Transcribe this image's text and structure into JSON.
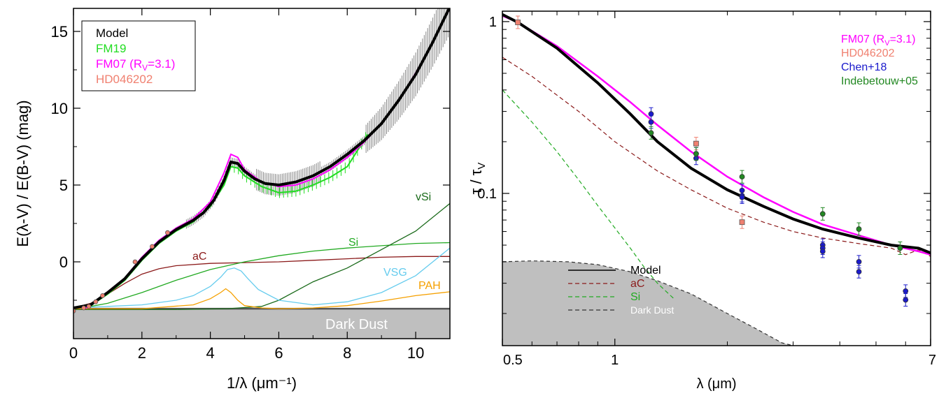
{
  "colors": {
    "model": "#000000",
    "fm19": "#22dd22",
    "fm07": "#ff00ff",
    "hd": "#f08070",
    "chen": "#1a1acc",
    "indebetouw": "#228822",
    "aC": "#8b1a1a",
    "Si": "#22aa22",
    "vSi": "#1a6a1a",
    "VSG": "#66ccee",
    "PAH": "#f5a000",
    "dark_dust": "#bfbfbf"
  },
  "chart_data": [
    {
      "type": "line",
      "xlabel": "1/λ (μm⁻¹)",
      "ylabel": "E(λ-V) / E(B-V) (mag)",
      "xlim": [
        0,
        11
      ],
      "ylim": [
        -5,
        16.5
      ],
      "xticks": [
        0,
        2,
        4,
        6,
        8,
        10
      ],
      "yticks": [
        0,
        5,
        10,
        15
      ],
      "legend": {
        "position": "top-left",
        "entries": [
          "Model",
          "FM19",
          "FM07 (R_V=3.1)",
          "HD046202"
        ]
      },
      "series": [
        {
          "name": "Model",
          "key": "model",
          "x": [
            0.0,
            0.5,
            1.0,
            1.5,
            2.0,
            2.5,
            3.0,
            3.5,
            3.8,
            4.1,
            4.4,
            4.6,
            4.8,
            5.0,
            5.3,
            5.6,
            6.0,
            6.5,
            7.0,
            7.5,
            8.0,
            8.5,
            9.0,
            9.5,
            10.0,
            10.5,
            11.0
          ],
          "y": [
            -3.0,
            -2.8,
            -2.0,
            -1.1,
            0.2,
            1.3,
            2.1,
            2.7,
            3.2,
            4.0,
            5.3,
            6.5,
            6.4,
            5.9,
            5.4,
            5.1,
            5.0,
            5.2,
            5.6,
            6.2,
            7.0,
            7.9,
            9.0,
            10.5,
            12.2,
            14.3,
            16.6
          ]
        },
        {
          "name": "FM19",
          "key": "fm19",
          "x": [
            0.0,
            0.5,
            1.0,
            1.5,
            2.0,
            2.5,
            3.0,
            3.5,
            4.0,
            4.4,
            4.6,
            4.8,
            5.0,
            5.5,
            6.0,
            6.5,
            7.0,
            7.5,
            8.0,
            8.6
          ],
          "y": [
            -3.0,
            -2.85,
            -2.1,
            -1.2,
            0.1,
            1.2,
            2.0,
            2.6,
            3.6,
            5.0,
            6.2,
            6.1,
            5.6,
            4.9,
            4.5,
            4.6,
            5.0,
            5.5,
            6.2,
            8.3
          ]
        },
        {
          "name": "FM07 (R_V=3.1)",
          "key": "fm07",
          "x": [
            0.3,
            0.5,
            1.0,
            1.5,
            2.0,
            2.5,
            3.0,
            3.5,
            4.0,
            4.4,
            4.6,
            4.8,
            5.0,
            5.5,
            6.0,
            6.5,
            7.0,
            7.5,
            8.0,
            8.5,
            9.0,
            9.5,
            10.0,
            10.5,
            11.0
          ],
          "y": [
            -3.1,
            -2.8,
            -1.95,
            -1.05,
            0.3,
            1.4,
            2.2,
            2.8,
            3.9,
            5.8,
            7.0,
            6.8,
            6.0,
            5.2,
            4.9,
            5.0,
            5.4,
            6.0,
            6.8,
            7.8,
            9.0,
            10.5,
            12.3,
            14.3,
            16.5
          ]
        }
      ],
      "data_points": {
        "name": "HD046202",
        "x": [
          0.0,
          0.3,
          0.45,
          0.65,
          0.85,
          1.8,
          2.3,
          2.75
        ],
        "y": [
          -3.2,
          -3.0,
          -2.9,
          -2.6,
          -2.2,
          0.0,
          1.0,
          1.9
        ]
      },
      "components": [
        {
          "name": "aC",
          "key": "aC",
          "x": [
            0,
            0.5,
            1.0,
            1.5,
            2.0,
            2.5,
            3.0,
            4.0,
            5.0,
            6.0,
            7.0,
            8.0,
            9.0,
            10.0,
            11.0
          ],
          "y": [
            -3.0,
            -2.7,
            -2.1,
            -1.4,
            -0.8,
            -0.45,
            -0.25,
            -0.1,
            -0.05,
            0.0,
            0.1,
            0.2,
            0.3,
            0.35,
            0.35
          ]
        },
        {
          "name": "Si",
          "key": "Si",
          "x": [
            0,
            0.5,
            1.0,
            2.0,
            3.0,
            4.0,
            5.0,
            6.0,
            7.0,
            8.0,
            9.0,
            10.0,
            11.0
          ],
          "y": [
            -3.0,
            -2.9,
            -2.7,
            -2.0,
            -1.2,
            -0.5,
            0.0,
            0.4,
            0.7,
            0.9,
            1.05,
            1.2,
            1.25
          ]
        },
        {
          "name": "vSi",
          "key": "vSi",
          "x": [
            0,
            3.0,
            4.5,
            5.5,
            6.0,
            6.5,
            7.0,
            8.0,
            9.0,
            10.0,
            11.0
          ],
          "y": [
            -3.1,
            -3.1,
            -3.05,
            -2.9,
            -2.5,
            -1.9,
            -1.3,
            -0.4,
            0.8,
            2.0,
            3.8
          ]
        },
        {
          "name": "VSG",
          "key": "VSG",
          "x": [
            0,
            1.0,
            2.0,
            3.0,
            3.5,
            4.0,
            4.3,
            4.5,
            4.7,
            4.9,
            5.1,
            5.4,
            6.0,
            7.0,
            8.0,
            9.0,
            10.0,
            11.0
          ],
          "y": [
            -3.0,
            -2.9,
            -2.8,
            -2.5,
            -2.2,
            -1.6,
            -1.0,
            -0.5,
            -0.4,
            -0.6,
            -1.1,
            -1.8,
            -2.5,
            -2.8,
            -2.6,
            -2.0,
            -0.9,
            0.9
          ]
        },
        {
          "name": "PAH",
          "key": "PAH",
          "x": [
            0,
            2.0,
            3.5,
            4.0,
            4.3,
            4.45,
            4.6,
            4.8,
            5.0,
            5.5,
            6.0,
            7.0,
            8.0,
            9.0,
            10.0,
            11.0
          ],
          "y": [
            -3.05,
            -3.05,
            -2.8,
            -2.4,
            -2.0,
            -1.75,
            -2.0,
            -2.5,
            -2.85,
            -3.0,
            -3.05,
            -3.0,
            -2.85,
            -2.55,
            -2.2,
            -1.95
          ]
        }
      ],
      "dark_dust": {
        "name": "Dark Dust",
        "level": -3.05
      },
      "component_labels": [
        "aC",
        "Si",
        "vSi",
        "VSG",
        "PAH",
        "Dark Dust"
      ]
    },
    {
      "type": "line",
      "xlabel": "λ (μm)",
      "ylabel": "τ / τ_V",
      "xscale": "log",
      "yscale": "log",
      "xlim": [
        0.5,
        7
      ],
      "ylim": [
        0.013,
        1.15
      ],
      "xticks": [
        0.5,
        1,
        7
      ],
      "yticks": [
        1.0,
        0.1
      ],
      "legend_top_right": {
        "position": "top-right",
        "entries": [
          "FM07 (R_V=3.1)",
          "HD046202",
          "Chen+18",
          "Indebetouw+05"
        ]
      },
      "legend_bottom_left": {
        "position": "bottom-left",
        "entries": [
          "Model",
          "aC",
          "Si",
          "Dark Dust"
        ]
      },
      "series": [
        {
          "name": "Model",
          "key": "model",
          "x": [
            0.5,
            0.55,
            0.7,
            0.9,
            1.1,
            1.3,
            1.6,
            2.0,
            2.5,
            3.0,
            3.6,
            4.5,
            5.5,
            6.5,
            7.0
          ],
          "y": [
            1.1,
            0.99,
            0.7,
            0.44,
            0.29,
            0.2,
            0.14,
            0.105,
            0.084,
            0.071,
            0.062,
            0.055,
            0.05,
            0.048,
            0.045
          ]
        },
        {
          "name": "FM07 (R_V=3.1)",
          "key": "fm07",
          "x": [
            0.5,
            0.55,
            0.7,
            0.9,
            1.1,
            1.3,
            1.6,
            2.0,
            2.5,
            3.0,
            3.6,
            4.5,
            5.5,
            6.5,
            7.0
          ],
          "y": [
            1.08,
            0.99,
            0.72,
            0.48,
            0.34,
            0.25,
            0.175,
            0.125,
            0.095,
            0.078,
            0.066,
            0.057,
            0.05,
            0.046,
            0.044
          ]
        },
        {
          "name": "aC",
          "key": "aC",
          "x": [
            0.5,
            0.6,
            0.8,
            1.0,
            1.3,
            1.6,
            2.0,
            2.5,
            3.0,
            3.6,
            4.5,
            5.5,
            6.0,
            6.5,
            7.0
          ],
          "y": [
            0.62,
            0.48,
            0.3,
            0.2,
            0.135,
            0.105,
            0.082,
            0.068,
            0.06,
            0.055,
            0.051,
            0.048,
            0.044,
            0.047,
            0.043
          ]
        },
        {
          "name": "Si",
          "key": "Si",
          "x": [
            0.5,
            0.6,
            0.7,
            0.8,
            0.9,
            1.0,
            1.1,
            1.2,
            1.3,
            1.45
          ],
          "y": [
            0.4,
            0.26,
            0.175,
            0.12,
            0.085,
            0.063,
            0.048,
            0.037,
            0.03,
            0.024
          ]
        },
        {
          "name": "Dark Dust",
          "key": "dark_dust",
          "x": [
            0.5,
            0.6,
            0.75,
            0.9,
            1.1,
            1.3,
            1.6,
            2.0,
            2.4,
            2.8,
            3.0
          ],
          "y": [
            0.04,
            0.0405,
            0.04,
            0.0385,
            0.035,
            0.031,
            0.026,
            0.02,
            0.0162,
            0.0135,
            0.013
          ]
        }
      ],
      "points": [
        {
          "name": "HD046202",
          "key": "hd",
          "marker": "square",
          "x": [
            0.55,
            1.65,
            2.19
          ],
          "y": [
            0.99,
            0.195,
            0.068
          ]
        },
        {
          "name": "Chen+18",
          "key": "chen",
          "marker": "circle",
          "x": [
            1.25,
            1.25,
            1.65,
            1.65,
            2.19,
            2.19,
            2.19,
            3.6,
            3.6,
            3.6,
            4.5,
            4.5,
            6.0,
            6.0
          ],
          "y": [
            0.29,
            0.26,
            0.17,
            0.16,
            0.104,
            0.097,
            0.095,
            0.05,
            0.048,
            0.046,
            0.04,
            0.035,
            0.027,
            0.024
          ]
        },
        {
          "name": "Indebetouw+05",
          "key": "indebetouw",
          "marker": "circle",
          "x": [
            1.25,
            1.65,
            2.19,
            3.6,
            4.5,
            5.8
          ],
          "y": [
            0.225,
            0.17,
            0.125,
            0.076,
            0.062,
            0.048
          ]
        }
      ]
    }
  ]
}
